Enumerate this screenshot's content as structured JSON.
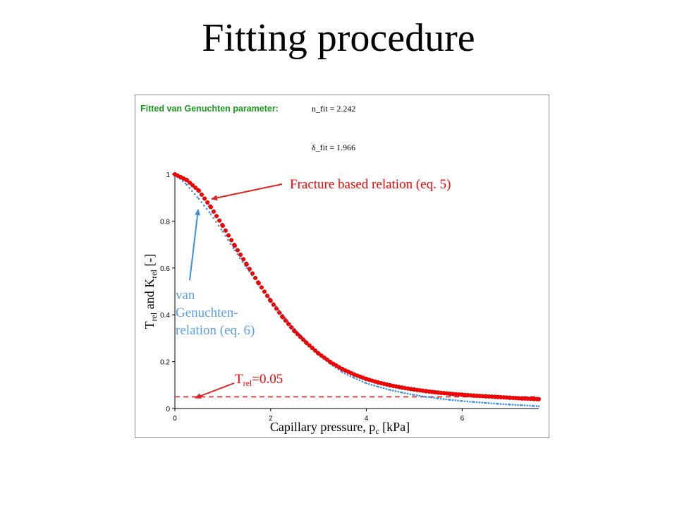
{
  "slide": {
    "title": "Fitting procedure"
  },
  "fit": {
    "heading": "Fitted van Genuchten parameter:",
    "n_fit": "n_fit = 2.242",
    "delta_fit": "δ_fit = 1.966"
  },
  "annotations": {
    "fracture": "Fracture based relation (eq. 5)",
    "vg_line1": "van",
    "vg_line2": "Genuchten-",
    "vg_line3": "relation (eq. 6)",
    "trel_main": "T",
    "trel_sub": "rel",
    "trel_value": "=0.05"
  },
  "axes": {
    "ylabel_T": "T",
    "ylabel_rel1": "rel",
    "ylabel_and": " and K",
    "ylabel_rel2": "rel",
    "ylabel_unit": " [-]",
    "xlabel_main": "Capillary pressure, p",
    "xlabel_sub": "c",
    "xlabel_unit": " [kPa]"
  },
  "colors": {
    "fracture": "#ff0000",
    "fracture_edge": "#b00000",
    "vg": "#3a8fe0",
    "threshold": "#e02020",
    "fit_heading": "#1a9a1a",
    "vg_text": "#5aa0e8"
  },
  "chart_data": {
    "type": "line",
    "x_range": [
      0,
      7.6
    ],
    "y_range": [
      0,
      1
    ],
    "x_ticks": [
      "0",
      "2",
      "4",
      "6"
    ],
    "y_ticks": [
      "0",
      "0.2",
      "0.4",
      "0.6",
      "0.8",
      "1"
    ],
    "x_tick_values": [
      0,
      2,
      4,
      6
    ],
    "y_tick_values": [
      0,
      0.2,
      0.4,
      0.6,
      0.8,
      1
    ],
    "series": [
      {
        "name": "Fracture based relation (eq. 5)",
        "x": [
          0,
          0.25,
          0.5,
          0.75,
          1.0,
          1.25,
          1.5,
          1.75,
          2.0,
          2.25,
          2.5,
          2.75,
          3.0,
          3.25,
          3.5,
          3.75,
          4.0,
          4.25,
          4.5,
          4.75,
          5.0,
          5.25,
          5.5,
          5.75,
          6.0,
          6.25,
          6.5,
          6.75,
          7.0,
          7.25,
          7.5,
          7.6
        ],
        "y": [
          1.0,
          0.975,
          0.93,
          0.86,
          0.78,
          0.695,
          0.615,
          0.535,
          0.46,
          0.39,
          0.33,
          0.28,
          0.235,
          0.198,
          0.168,
          0.145,
          0.126,
          0.111,
          0.099,
          0.089,
          0.081,
          0.074,
          0.068,
          0.063,
          0.059,
          0.055,
          0.052,
          0.049,
          0.046,
          0.043,
          0.041,
          0.04
        ]
      },
      {
        "name": "van Genuchten-relation (eq. 6)",
        "x": [
          0,
          0.25,
          0.5,
          0.75,
          1.0,
          1.25,
          1.5,
          1.75,
          2.0,
          2.25,
          2.5,
          2.75,
          3.0,
          3.25,
          3.5,
          3.75,
          4.0,
          4.25,
          4.5,
          4.75,
          5.0,
          5.25,
          5.5,
          5.75,
          6.0,
          6.25,
          6.5,
          6.75,
          7.0,
          7.25,
          7.5,
          7.6
        ],
        "y": [
          1.0,
          0.955,
          0.895,
          0.83,
          0.755,
          0.675,
          0.6,
          0.53,
          0.465,
          0.4,
          0.34,
          0.285,
          0.235,
          0.19,
          0.155,
          0.13,
          0.108,
          0.093,
          0.079,
          0.068,
          0.058,
          0.05,
          0.043,
          0.037,
          0.032,
          0.028,
          0.024,
          0.02,
          0.017,
          0.014,
          0.011,
          0.01
        ]
      },
      {
        "name": "T_rel=0.05",
        "x": [
          0,
          7.6
        ],
        "y": [
          0.05,
          0.05
        ]
      }
    ]
  }
}
